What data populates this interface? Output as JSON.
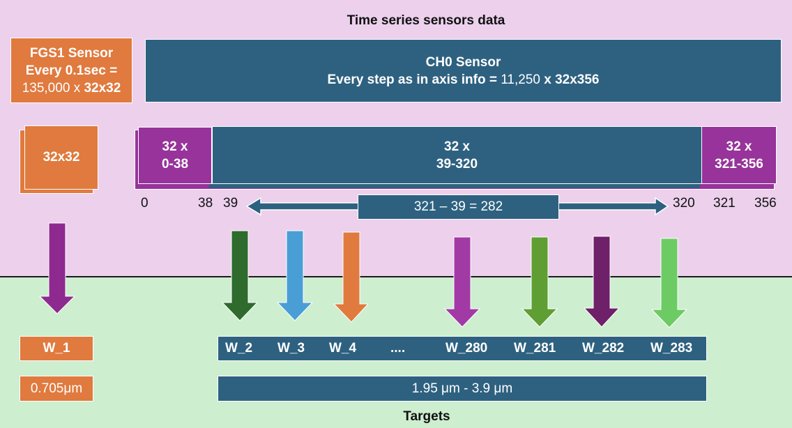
{
  "title": "Time series sensors data",
  "footer": "Targets",
  "fgs1": {
    "line1": "FGS1 Sensor",
    "line2": "Every 0.1sec =",
    "line3_value": "135,000 x ",
    "line3_bold": "32x32"
  },
  "ch0": {
    "line1": "CH0 Sensor",
    "line2_bold": "Every step as in axis info = ",
    "line2_value": "11,250",
    "line2_x": " x ",
    "line2_dims": "32x356"
  },
  "frame": {
    "label": "32x32"
  },
  "segments": [
    {
      "line1": "32 x",
      "line2": "0-38"
    },
    {
      "line1": "32 x",
      "line2": "39-320"
    },
    {
      "line1": "32 x",
      "line2": "321-356"
    }
  ],
  "ticks": [
    "0",
    "38",
    "39",
    "320",
    "321",
    "356"
  ],
  "range_label": "321 – 39 = 282",
  "wavelengths": {
    "fgs": "W_1",
    "ch0": [
      "W_2",
      "W_3",
      "W_4",
      "....",
      "W_280",
      "W_281",
      "W_282",
      "W_283"
    ]
  },
  "wavelength_values": {
    "fgs": "0.705μm",
    "ch0": "1.95 μm -  3.9 μm"
  },
  "colors": {
    "orange": "#e07a3e",
    "teal": "#2e6180",
    "purple": "#97339a",
    "background_top": "#ecd0ec",
    "background_bottom": "#cdeecf"
  },
  "arrows": [
    {
      "target": "W_1",
      "color": "#8e2a8f"
    },
    {
      "target": "W_2",
      "color": "#2e6b2d"
    },
    {
      "target": "W_3",
      "color": "#4a9ed6"
    },
    {
      "target": "W_4",
      "color": "#e07a3e"
    },
    {
      "target": "W_280",
      "color": "#a23aa5"
    },
    {
      "target": "W_281",
      "color": "#5e9e33"
    },
    {
      "target": "W_282",
      "color": "#6e2068"
    },
    {
      "target": "W_283",
      "color": "#6dcb64"
    }
  ]
}
